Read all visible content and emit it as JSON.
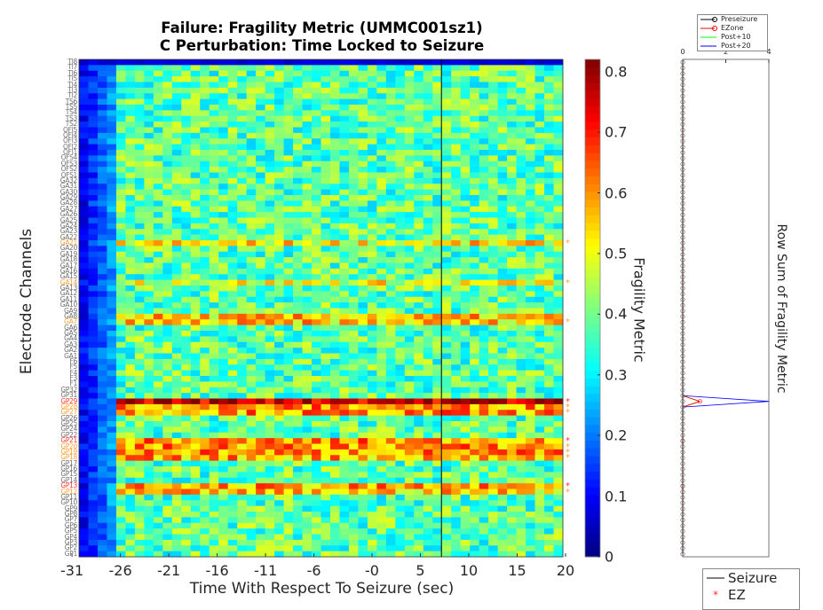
{
  "chart_data": [
    {
      "type": "heatmap",
      "title": [
        "Failure: Fragility Metric (UMMC001sz1)",
        "C Perturbation:  Time Locked to Seizure"
      ],
      "xlabel": "Time With Respect To Seizure (sec)",
      "ylabel": "Electrode Channels",
      "xlim": [
        -31,
        20
      ],
      "xticks": [
        -31,
        -26,
        -21,
        -16,
        -11,
        -6,
        0,
        5,
        10,
        15,
        20
      ],
      "xtick_labels": [
        "-31",
        "-26",
        "-21",
        "-16",
        "-11",
        "-6",
        "-0",
        "5",
        "10",
        "15",
        "20"
      ],
      "seizure_onset_sec": 7.2,
      "channels": [
        "TI8",
        "TI7",
        "TI6",
        "TI5",
        "TI4",
        "TI3",
        "TI2",
        "TS6",
        "TS5",
        "TS4",
        "TS3",
        "TS2",
        "OFI5",
        "OFI4",
        "OFI3",
        "OFI2",
        "OFI1",
        "OFS4",
        "OFS3",
        "OFS2",
        "OFS1",
        "GA32",
        "GA31",
        "GA30",
        "GA29",
        "GA28",
        "GA27",
        "GA26",
        "GA25",
        "GA24",
        "GA23",
        "GA22",
        "GA21",
        "GA20",
        "GA19",
        "GA18",
        "GA17",
        "GA16",
        "GA15",
        "GA14",
        "GA13",
        "GA12",
        "GA11",
        "GA10",
        "GA9",
        "GA8",
        "GA7",
        "GA6",
        "GA5",
        "GA4",
        "GA3",
        "GA2",
        "GA1",
        "F6",
        "F5",
        "F4",
        "F3",
        "F1",
        "GP32",
        "GP31",
        "GP29",
        "GP28",
        "GP27",
        "GP26",
        "GP25",
        "GP24",
        "GP22",
        "GP21",
        "GP20",
        "GP19",
        "GP18",
        "GP17",
        "GP16",
        "GP15",
        "GP14",
        "GP13",
        "GP12",
        "GP11",
        "GP10",
        "GP9",
        "GP8",
        "GP7",
        "GP6",
        "GP5",
        "GP4",
        "GP3",
        "GP2",
        "GP1"
      ],
      "ez_channels": [
        "GP29",
        "GP21",
        "GP13"
      ],
      "resected_channels": [
        "GA21",
        "GA14",
        "GA7",
        "GP28",
        "GP27",
        "GP20",
        "GP19",
        "GP18",
        "GP12"
      ],
      "high_fragility_rows": {
        "GP29": 0.78,
        "GP28": 0.6,
        "GP27": 0.6,
        "GP21": 0.6,
        "GP20": 0.6,
        "GP19": 0.6,
        "GP18": 0.58,
        "GP13": 0.58,
        "GP12": 0.55,
        "GA8": 0.55,
        "GA7": 0.55,
        "GA21": 0.52,
        "GA14": 0.5
      },
      "first_columns_low": {
        "until_sec": -28,
        "value": 0.08
      },
      "colorbar": {
        "label": "Fragility Metric",
        "range": [
          0,
          0.82
        ],
        "ticks": [
          0,
          0.1,
          0.2,
          0.3,
          0.4,
          0.5,
          0.6,
          0.7,
          0.8
        ],
        "tick_labels": [
          "0",
          "0.1",
          "0.2",
          "0.3",
          "0.4",
          "0.5",
          "0.6",
          "0.7",
          "0.8"
        ],
        "colormap": "jet"
      }
    },
    {
      "type": "line",
      "ylabel": "Row Sum of Fragility Metric",
      "xlim": [
        0,
        4
      ],
      "xticks": [
        0,
        2,
        4
      ],
      "xtick_labels": [
        "0",
        "2",
        "4"
      ],
      "series": [
        {
          "name": "Preseizure",
          "color": "#000000",
          "marker": "o",
          "peak_channel": "GP29",
          "peak_value": 0
        },
        {
          "name": "EZone",
          "color": "#ff0000",
          "marker": "o",
          "peak_channel": "GP29",
          "peak_value": 0.8
        },
        {
          "name": "Post+10",
          "color": "#00ff00",
          "marker": "none",
          "peak_channel": "GP29",
          "peak_value": 0.8
        },
        {
          "name": "Post+20",
          "color": "#0000ff",
          "marker": "none",
          "peak_channel": "GP29",
          "peak_value": 4.0
        }
      ],
      "legend_position": "top",
      "legend2": [
        {
          "name": "Seizure",
          "style": "line",
          "color": "#000000"
        },
        {
          "name": "EZ",
          "style": "star",
          "color": "#ff0000"
        }
      ]
    }
  ],
  "colors": {
    "ez": "#ff3333",
    "resected": "#ffa033",
    "normal_label": "#6e6e6e"
  },
  "text": {
    "title1": "Failure: Fragility Metric (UMMC001sz1)",
    "title2": "C Perturbation:  Time Locked to Seizure",
    "xlabel": "Time With Respect To Seizure (sec)",
    "ylabel": "Electrode Channels",
    "cblabel": "Fragility Metric",
    "rslabel": "Row Sum of Fragility Metric",
    "leg_pre": "Preseizure",
    "leg_ez": "EZone",
    "leg_p10": "Post+10",
    "leg_p20": "Post+20",
    "leg2_seizure": "Seizure",
    "leg2_ez": "EZ"
  }
}
